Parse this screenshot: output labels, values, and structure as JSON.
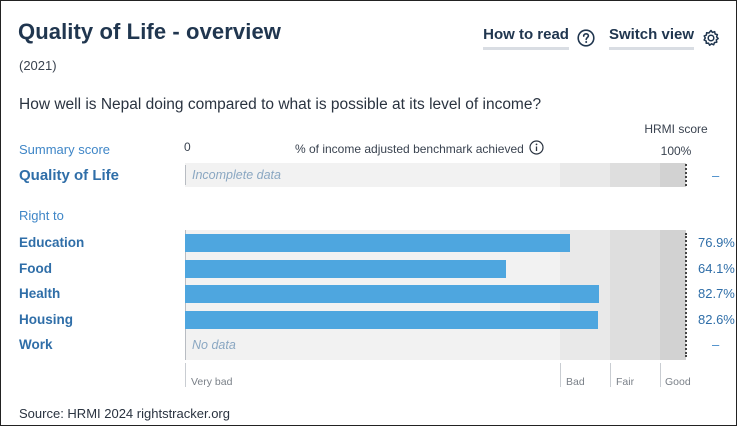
{
  "header": {
    "title": "Quality of Life - overview",
    "year": "(2021)",
    "how_to_read_label": "How to read",
    "switch_view_label": "Switch view",
    "how_to_read_icon": "question-circle-icon",
    "switch_view_icon": "gear-icon"
  },
  "question": "How well is Nepal doing compared to what is possible at its level of income?",
  "axis": {
    "summary_label": "Summary score",
    "zero": "0",
    "benchmark_label": "% of income adjusted benchmark achieved",
    "info_icon": "info-circle-icon",
    "hrmi_score_label": "HRMI score",
    "hundred": "100%"
  },
  "quality_of_life": {
    "label": "Quality of Life",
    "status": "Incomplete data",
    "score": "–"
  },
  "right_to_label": "Right to",
  "scale_labels": {
    "very_bad": "Very bad",
    "bad": "Bad",
    "fair": "Fair",
    "good": "Good"
  },
  "source": "Source: HRMI 2024 rightstracker.org",
  "colors": {
    "bar": "#4ea6df",
    "title": "#20364f",
    "label": "#2f6ea8",
    "zone_very_bad": "#f2f2f2",
    "zone_bad": "#e9e9e9",
    "zone_fair": "#dedede",
    "zone_good": "#d2d2d2"
  },
  "chart_data": {
    "type": "bar",
    "orientation": "horizontal",
    "categories": [
      "Education",
      "Food",
      "Health",
      "Housing",
      "Work"
    ],
    "series": [
      {
        "values": [
          76.9,
          64.1,
          82.7,
          82.6,
          null
        ]
      }
    ],
    "value_labels": [
      "76.9%",
      "64.1%",
      "82.7%",
      "82.6%",
      "–"
    ],
    "missing_label": "No data",
    "xlim": [
      0,
      100
    ],
    "xlabel": "% of income adjusted benchmark achieved",
    "bands": [
      {
        "label": "Very bad",
        "from": 0,
        "to": 75
      },
      {
        "label": "Bad",
        "from": 75,
        "to": 85
      },
      {
        "label": "Fair",
        "from": 85,
        "to": 95
      },
      {
        "label": "Good",
        "from": 95,
        "to": 100
      }
    ]
  }
}
